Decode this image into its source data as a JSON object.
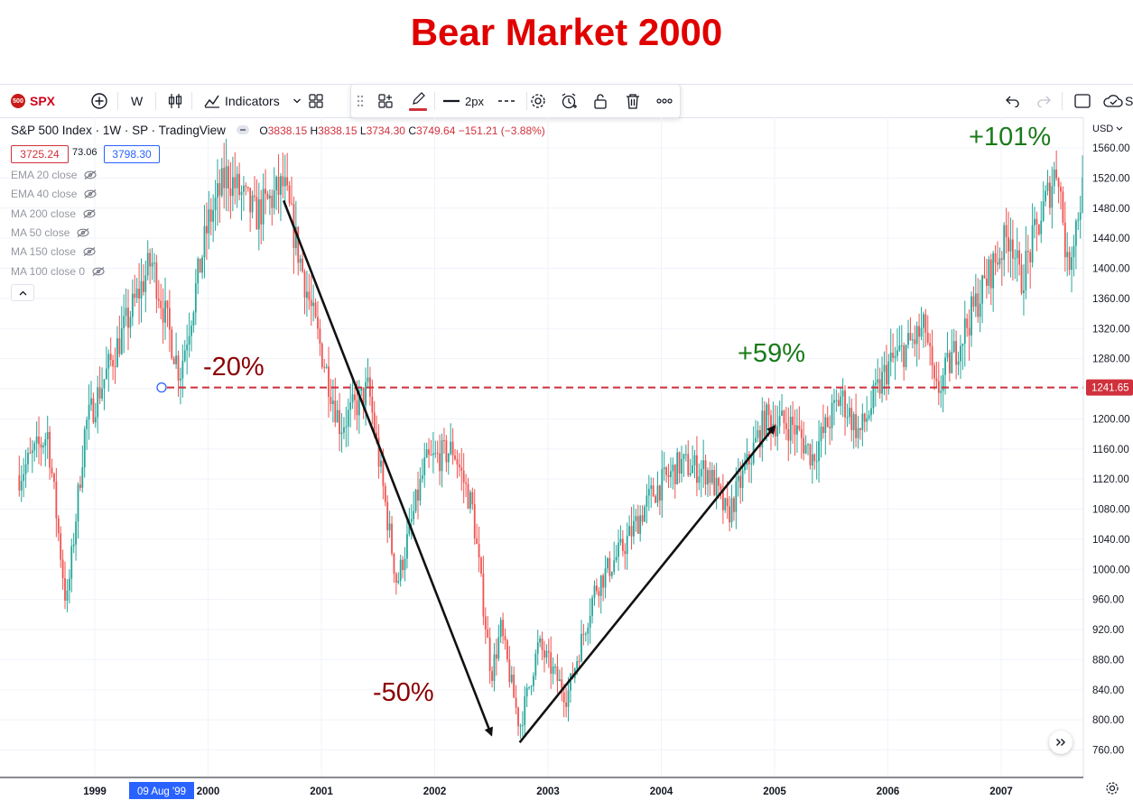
{
  "page_title": "Bear Market 2000",
  "colors": {
    "title": "#e00000",
    "up_candle": "#26a69a",
    "down_candle": "#ef5350",
    "line_red": "#d0313c",
    "annotation_red": "#8b0000",
    "annotation_green": "#1a7a1a",
    "date_highlight": "#2962ff"
  },
  "toolbar": {
    "symbol": "SPX",
    "symbol_logo": "500",
    "interval": "W",
    "indicators_label": "Indicators",
    "line_width_label": "2px",
    "icons": [
      "add-icon",
      "candles-icon",
      "indicators-icon",
      "chevron-down-icon",
      "layout-icon",
      "grip-icon",
      "templates-icon",
      "pencil-icon",
      "line-style-icon",
      "dash-style-icon",
      "settings-icon",
      "alert-icon",
      "lock-icon",
      "trash-icon",
      "more-icon",
      "undo-icon",
      "redo-icon",
      "fullscreen-icon",
      "cloud-icon"
    ]
  },
  "legend": {
    "name": "S&P 500 Index · 1W · SP · TradingView",
    "ohlc": {
      "o_label": "O",
      "o_value": "3838.15",
      "h_label": "H",
      "h_value": "3838.15",
      "l_label": "L",
      "l_value": "3734.30",
      "c_label": "C",
      "c_value": "3749.64",
      "change": "−151.21 (−3.88%)"
    },
    "bid": "3725.24",
    "spread": "73.06",
    "ask": "3798.30",
    "indicators": [
      "EMA 20 close",
      "EMA 40 close",
      "MA 200 close",
      "MA 50 close",
      "MA 150 close",
      "MA 100 close 0"
    ]
  },
  "price_axis": {
    "currency": "USD",
    "ticks": [
      "1560.00",
      "1520.00",
      "1480.00",
      "1440.00",
      "1400.00",
      "1360.00",
      "1320.00",
      "1280.00",
      "1240.00",
      "1200.00",
      "1160.00",
      "1120.00",
      "1080.00",
      "1040.00",
      "1000.00",
      "960.00",
      "920.00",
      "880.00",
      "840.00",
      "800.00",
      "760.00"
    ],
    "horizontal_line_label": "1241.65"
  },
  "time_axis": {
    "labels": [
      "1999",
      "2000",
      "2001",
      "2002",
      "2003",
      "2004",
      "2005",
      "2006",
      "2007"
    ],
    "crosshair_label": "09 Aug '99"
  },
  "annotations": {
    "minus20": "-20%",
    "minus50": "-50%",
    "plus59": "+59%",
    "plus101": "+101%"
  },
  "chart_data": {
    "type": "candlestick",
    "title": "Bear Market 2000",
    "xlabel": "",
    "ylabel": "",
    "x_range": [
      "1998-05",
      "2007-11"
    ],
    "ylim": [
      740,
      1575
    ],
    "grid": true,
    "horizontal_line": 1241.65,
    "series": [
      {
        "points": [
          [
            "1998-05",
            1125
          ],
          [
            "1998-08",
            1180
          ],
          [
            "1998-10",
            950
          ],
          [
            "1998-12",
            1190
          ],
          [
            "1999-03",
            1285
          ],
          [
            "1999-07",
            1410
          ],
          [
            "1999-10",
            1260
          ],
          [
            "2000-01",
            1460
          ],
          [
            "2000-03",
            1525
          ],
          [
            "2000-06",
            1470
          ],
          [
            "2000-09",
            1510
          ],
          [
            "2000-12",
            1340
          ],
          [
            "2001-03",
            1190
          ],
          [
            "2001-06",
            1240
          ],
          [
            "2001-09",
            980
          ],
          [
            "2001-12",
            1140
          ],
          [
            "2002-03",
            1160
          ],
          [
            "2002-05",
            1080
          ],
          [
            "2002-07",
            860
          ],
          [
            "2002-08",
            920
          ],
          [
            "2002-10",
            790
          ],
          [
            "2002-12",
            900
          ],
          [
            "2003-03",
            830
          ],
          [
            "2003-06",
            975
          ],
          [
            "2003-09",
            1030
          ],
          [
            "2003-12",
            1100
          ],
          [
            "2004-03",
            1140
          ],
          [
            "2004-06",
            1130
          ],
          [
            "2004-08",
            1070
          ],
          [
            "2004-12",
            1200
          ],
          [
            "2005-03",
            1190
          ],
          [
            "2005-05",
            1150
          ],
          [
            "2005-08",
            1230
          ],
          [
            "2005-10",
            1180
          ],
          [
            "2006-01",
            1270
          ],
          [
            "2006-05",
            1320
          ],
          [
            "2006-06",
            1230
          ],
          [
            "2006-12",
            1400
          ],
          [
            "2007-02",
            1450
          ],
          [
            "2007-03",
            1380
          ],
          [
            "2007-07",
            1540
          ],
          [
            "2007-08",
            1400
          ],
          [
            "2007-10",
            1530
          ],
          [
            "2007-11",
            1480
          ]
        ]
      }
    ],
    "arrows": [
      {
        "from": [
          "2000-09",
          1490
        ],
        "to": [
          "2002-07",
          780
        ]
      },
      {
        "from": [
          "2002-10",
          770
        ],
        "to": [
          "2005-01",
          1190
        ]
      }
    ],
    "annotations": [
      "-20%",
      "-50%",
      "+59%",
      "+101%"
    ]
  }
}
